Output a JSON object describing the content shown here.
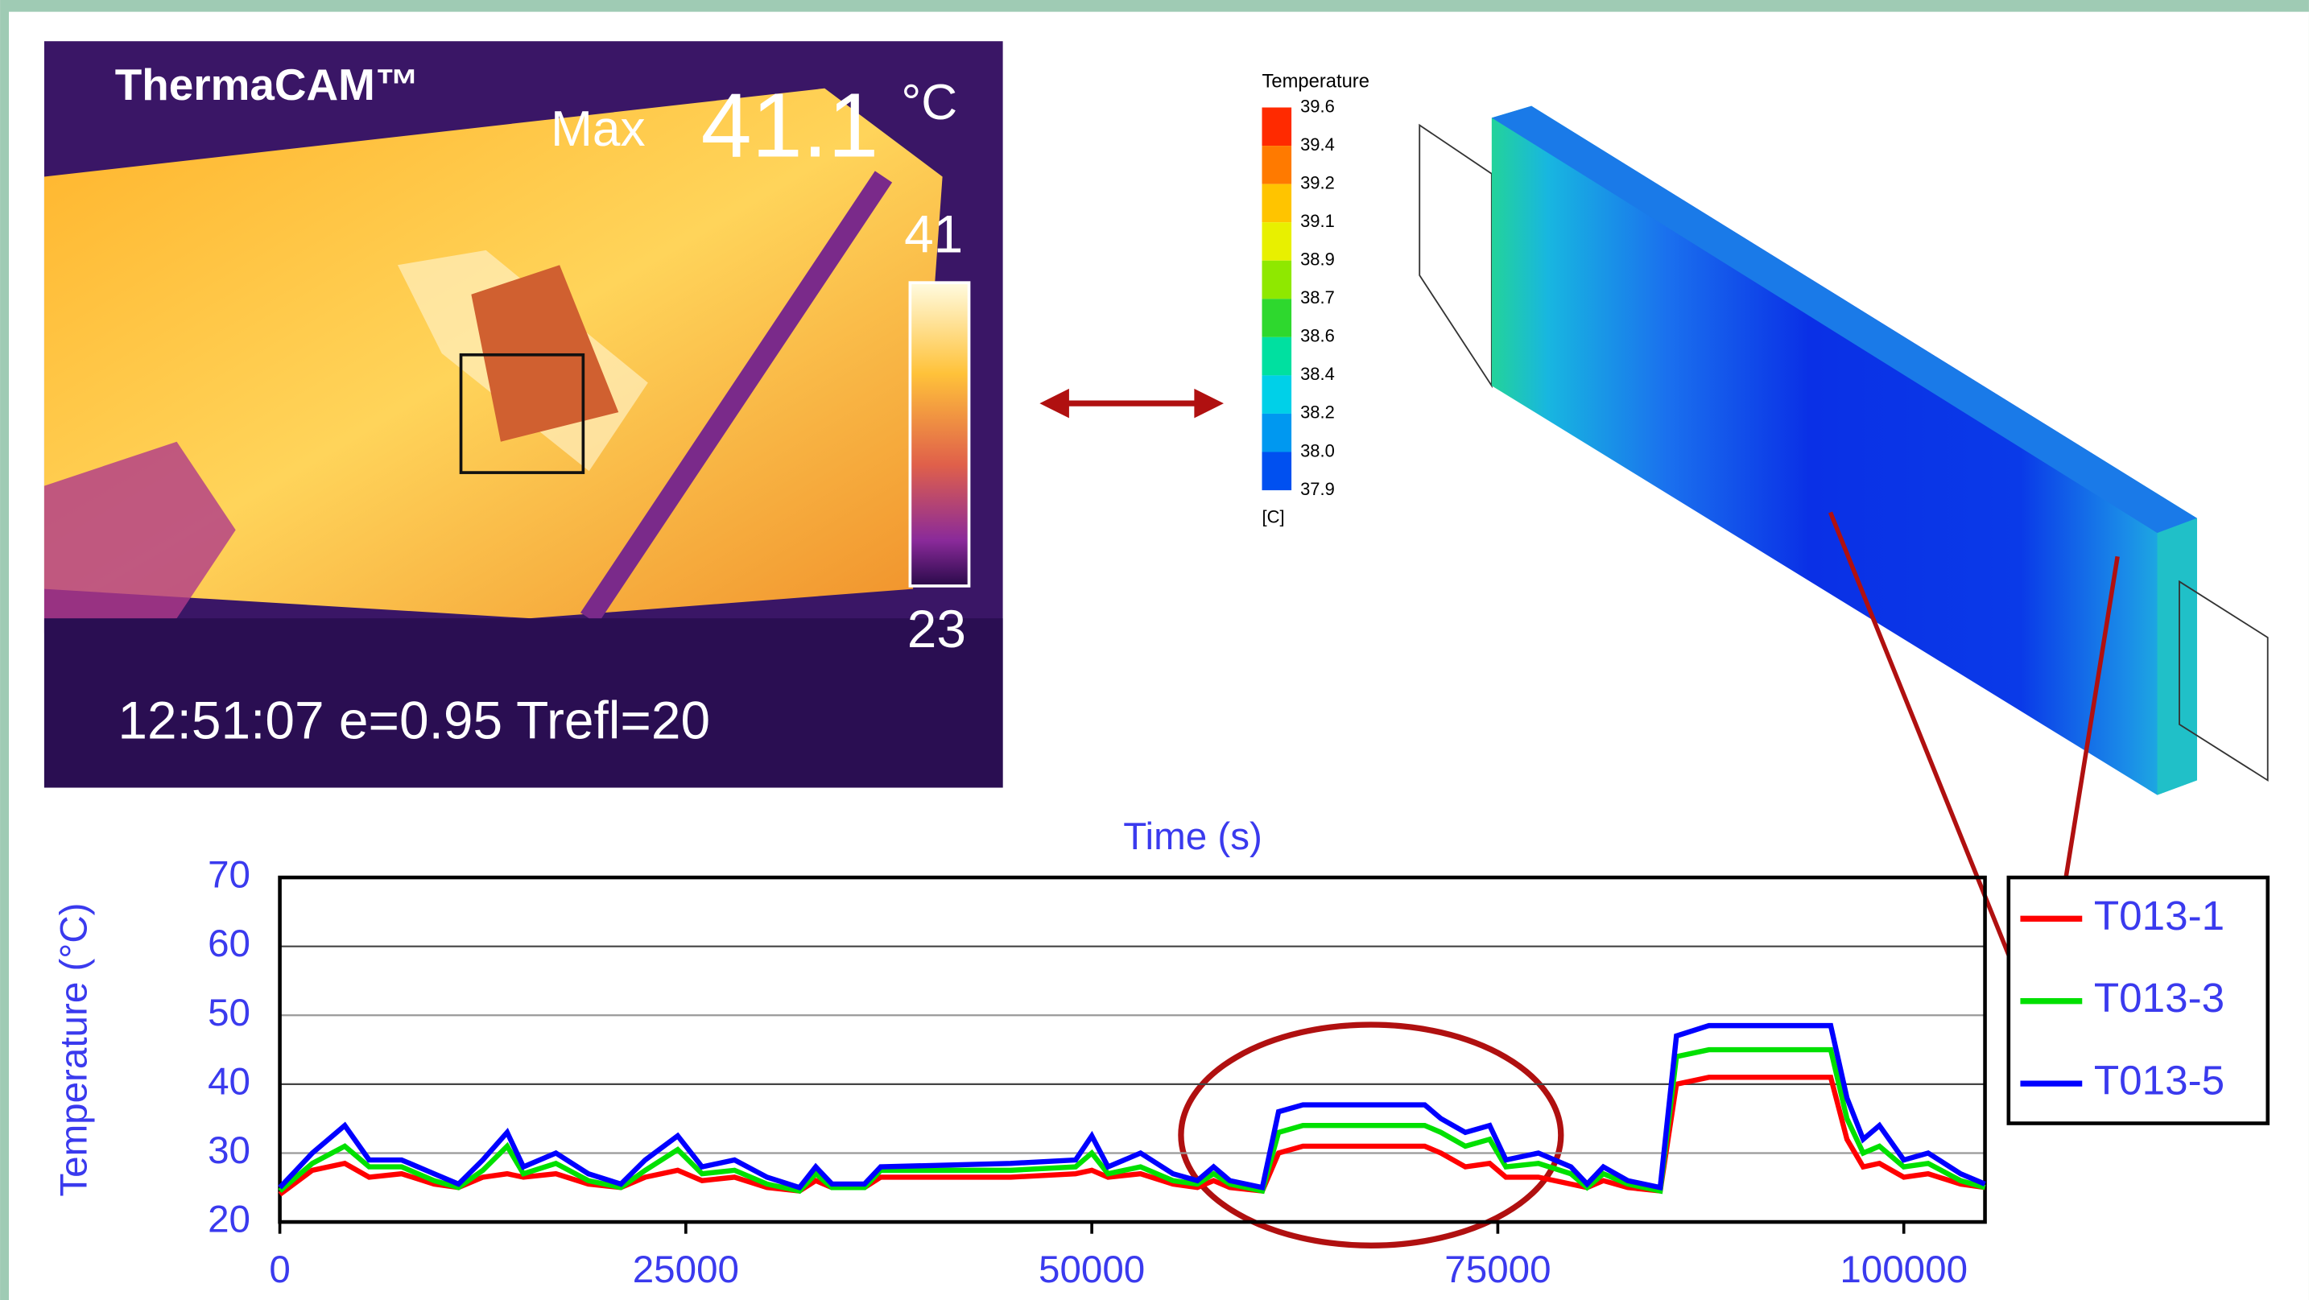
{
  "thermal_image": {
    "brand": "ThermaCAM™",
    "max_label": "Max",
    "max_value": "41.1",
    "unit": "°C",
    "scale_top": "41",
    "scale_bottom": "23",
    "footer": "12:51:07 e=0.95 Trefl=20"
  },
  "simulation": {
    "legend_title": "Temperature",
    "legend_unit": "[C]",
    "legend_ticks": [
      "39.6",
      "39.4",
      "39.2",
      "39.1",
      "38.9",
      "38.7",
      "38.6",
      "38.4",
      "38.2",
      "38.0",
      "37.9"
    ],
    "colors": [
      "#ff2a00",
      "#ff7a00",
      "#ffc400",
      "#e8f000",
      "#8fe800",
      "#2ed82e",
      "#00e0a0",
      "#00d0e8",
      "#0098f0",
      "#0050f0"
    ]
  },
  "chart_data": {
    "type": "line",
    "title": "Time (s)",
    "y_label": "Temperature (°C)",
    "x": [
      0,
      2000,
      4000,
      5500,
      7500,
      9500,
      11000,
      12500,
      14000,
      15000,
      17000,
      19000,
      21000,
      22500,
      24500,
      26000,
      28000,
      30000,
      32000,
      33000,
      34000,
      36000,
      37000,
      45000,
      49000,
      50000,
      51000,
      53000,
      55000,
      56500,
      57500,
      58500,
      60500,
      61500,
      63000,
      70500,
      71500,
      73000,
      74500,
      75500,
      77500,
      79500,
      80500,
      81500,
      83000,
      85000,
      86000,
      88000,
      95500,
      96500,
      97500,
      98500,
      100000,
      101500,
      103500,
      105000
    ],
    "series": [
      {
        "name": "T013-1",
        "color": "#ff0000",
        "values": [
          24,
          27.5,
          28.5,
          26.5,
          27,
          25.5,
          25,
          26.5,
          27,
          26.5,
          27,
          25.5,
          25,
          26.5,
          27.5,
          26,
          26.5,
          25,
          24.5,
          26,
          25,
          25,
          26.5,
          26.5,
          27,
          27.5,
          26.5,
          27,
          25.5,
          25,
          26,
          25,
          24.5,
          30,
          31,
          31,
          30,
          28,
          28.5,
          26.5,
          26.5,
          25.5,
          25,
          26,
          25,
          24.5,
          40,
          41,
          41,
          32,
          28,
          28.5,
          26.5,
          27,
          25.5,
          25
        ]
      },
      {
        "name": "T013-3",
        "color": "#00e000",
        "values": [
          24.5,
          28.5,
          31,
          28,
          28,
          26,
          25,
          27.5,
          31,
          27,
          28.5,
          26,
          25,
          27.5,
          30.5,
          27,
          27.5,
          25.5,
          24.5,
          27,
          25,
          25,
          27.5,
          27.5,
          28,
          30,
          27,
          28,
          26,
          25.5,
          27,
          25.5,
          24.5,
          33,
          34,
          34,
          33,
          31,
          32,
          28,
          28.5,
          27,
          25,
          27,
          25.5,
          24.5,
          44,
          45,
          45,
          35,
          30,
          31,
          28,
          28.5,
          26,
          25
        ]
      },
      {
        "name": "T013-5",
        "color": "#0000ff",
        "values": [
          25,
          30,
          34,
          29,
          29,
          27,
          25.5,
          29,
          33,
          28,
          30,
          27,
          25.5,
          29,
          32.5,
          28,
          29,
          26.5,
          25,
          28,
          25.5,
          25.5,
          28,
          28.5,
          29,
          32.5,
          28,
          30,
          27,
          26,
          28,
          26,
          25,
          36,
          37,
          37,
          35,
          33,
          34,
          29,
          30,
          28,
          25.5,
          28,
          26,
          25,
          47,
          48.5,
          48.5,
          38,
          32,
          34,
          29,
          30,
          27,
          25.5
        ]
      }
    ],
    "xlim": [
      0,
      105000
    ],
    "xticks": [
      0,
      25000,
      50000,
      75000,
      100000
    ],
    "ylim": [
      20,
      70
    ],
    "yticks": [
      20,
      30,
      40,
      50,
      60,
      70
    ],
    "grid": true,
    "legend": "right"
  }
}
